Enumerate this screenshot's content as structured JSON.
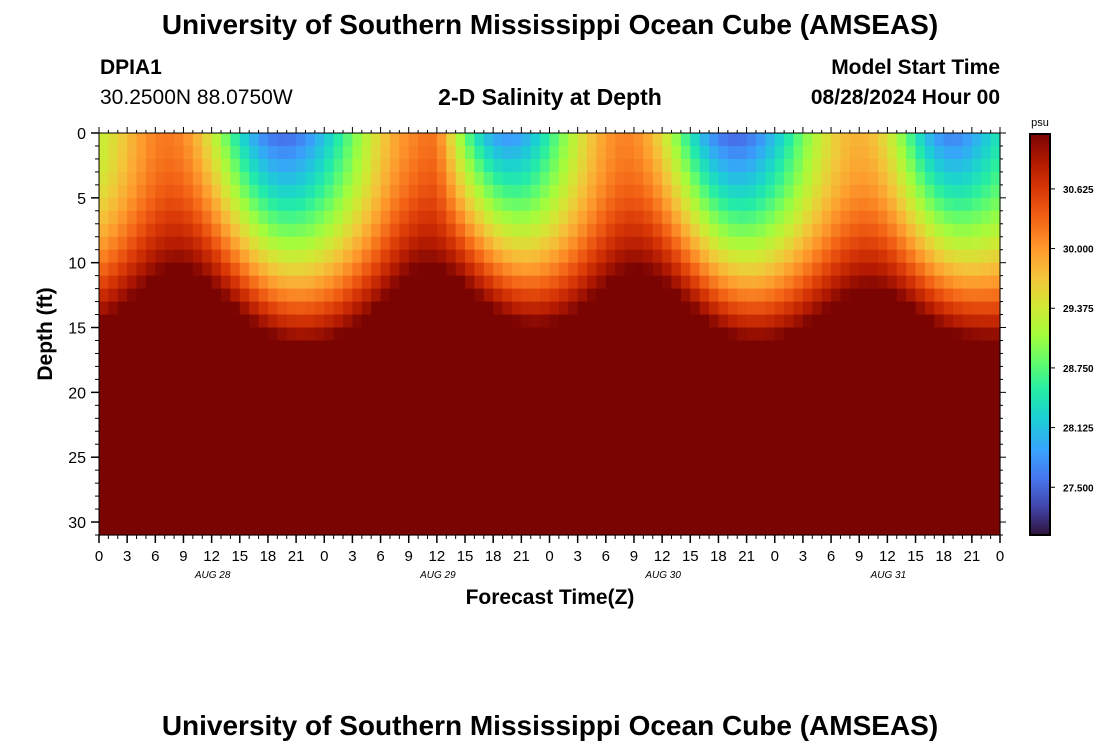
{
  "header": {
    "title": "University of Southern Mississippi Ocean Cube (AMSEAS)",
    "station_id": "DPIA1",
    "station_coords": "30.2500N  88.0750W",
    "subtitle": "2-D Salinity at Depth",
    "model_start_label": "Model Start Time",
    "model_start_value": "08/28/2024 Hour 00"
  },
  "footer": {
    "title": "University of Southern Mississippi Ocean Cube (AMSEAS)"
  },
  "chart_data": {
    "type": "heatmap",
    "title": "2-D Salinity at Depth",
    "xlabel": "Forecast Time(Z)",
    "ylabel": "Depth (ft)",
    "x_range_hours": [
      0,
      96
    ],
    "y_range_ft": [
      0,
      31
    ],
    "y_reversed": true,
    "x_ticks": [
      "0",
      "3",
      "6",
      "9",
      "12",
      "15",
      "18",
      "21",
      "0",
      "3",
      "6",
      "9",
      "12",
      "15",
      "18",
      "21",
      "0",
      "3",
      "6",
      "9",
      "12",
      "15",
      "18",
      "21",
      "0",
      "3",
      "6",
      "9",
      "12",
      "15",
      "18",
      "21",
      "0"
    ],
    "date_labels": [
      {
        "text": "AUG 28",
        "hour": 12
      },
      {
        "text": "AUG 29",
        "hour": 36
      },
      {
        "text": "AUG 30",
        "hour": 60
      },
      {
        "text": "AUG 31",
        "hour": 84
      }
    ],
    "y_ticks": [
      "0",
      "5",
      "10",
      "15",
      "20",
      "25",
      "30"
    ],
    "colorbar": {
      "units": "psu",
      "range": [
        27.0,
        31.2
      ],
      "tick_labels": [
        "30.625",
        "30.000",
        "29.375",
        "28.750",
        "28.125",
        "27.500"
      ],
      "tick_values": [
        30.625,
        30.0,
        29.375,
        28.75,
        28.125,
        27.5
      ]
    },
    "high_salinity_cores_hours": [
      8,
      36,
      57,
      82
    ],
    "low_salinity_tops_hours": [
      19,
      41,
      67,
      90
    ],
    "salinity_range_psu": [
      27.0,
      31.2
    ],
    "grid": false
  }
}
